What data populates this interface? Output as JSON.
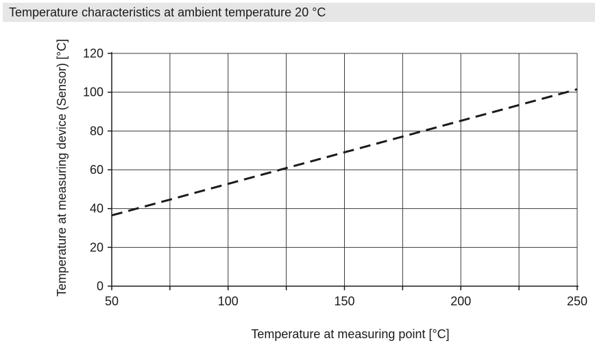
{
  "header": {
    "title": "Temperature characteristics at ambient temperature 20 °C"
  },
  "chart_data": {
    "type": "line",
    "title": "",
    "xlabel": "Temperature at measuring point [°C]",
    "ylabel": "Temperature at measuring device (Sensor) [°C]",
    "xlim": [
      50,
      250
    ],
    "ylim": [
      0,
      120
    ],
    "x_ticks": [
      50,
      100,
      150,
      200,
      250
    ],
    "y_ticks": [
      0,
      20,
      40,
      60,
      80,
      100,
      120
    ],
    "x_tick_labels": [
      "50",
      "100",
      "150",
      "200",
      "250"
    ],
    "y_tick_labels": [
      "0",
      "20",
      "40",
      "60",
      "80",
      "100",
      "120"
    ],
    "x_grid": [
      50,
      75,
      100,
      125,
      150,
      175,
      200,
      225,
      250
    ],
    "y_grid": [
      0,
      20,
      40,
      60,
      80,
      100,
      120
    ],
    "grid": true,
    "legend": "none",
    "series": [
      {
        "line_style": "dashed",
        "color": "#1a1a1a",
        "x": [
          50,
          250
        ],
        "y": [
          36.5,
          101.5
        ]
      }
    ]
  }
}
